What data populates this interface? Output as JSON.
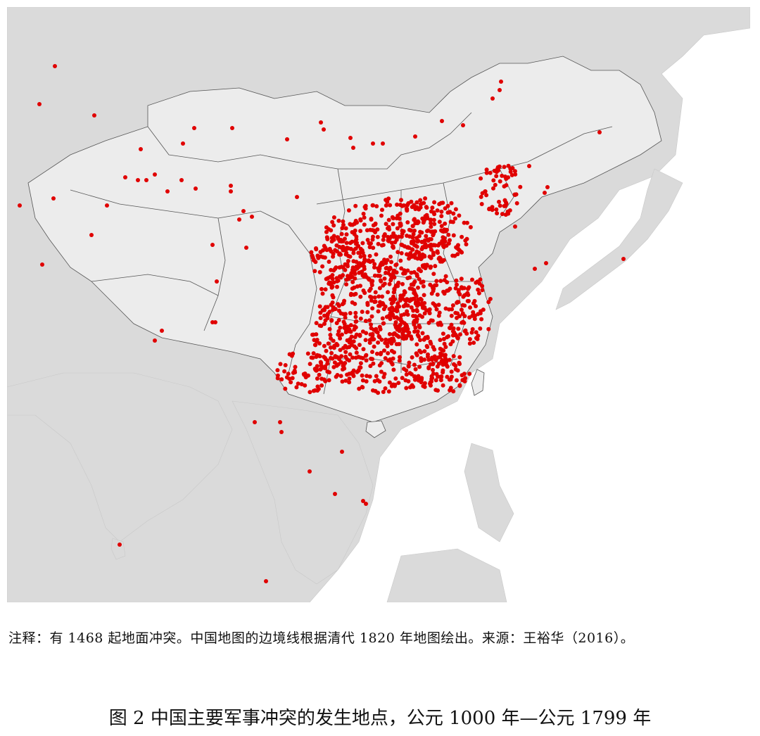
{
  "map": {
    "colors": {
      "sea": "#ffffff",
      "foreign_land": "#dadada",
      "qing_territory": "#ececec",
      "border": "#555555",
      "conflict_point": "#e00000"
    },
    "symbols": {
      "conflict_point": "red-dot"
    }
  },
  "note": "注释：有 1468 起地面冲突。中国地图的边境线根据清代 1820 年地图绘出。来源：王裕华（2016）。",
  "caption": "图 2  中国主要军事冲突的发生地点，公元 1000 年—公元 1799 年"
}
